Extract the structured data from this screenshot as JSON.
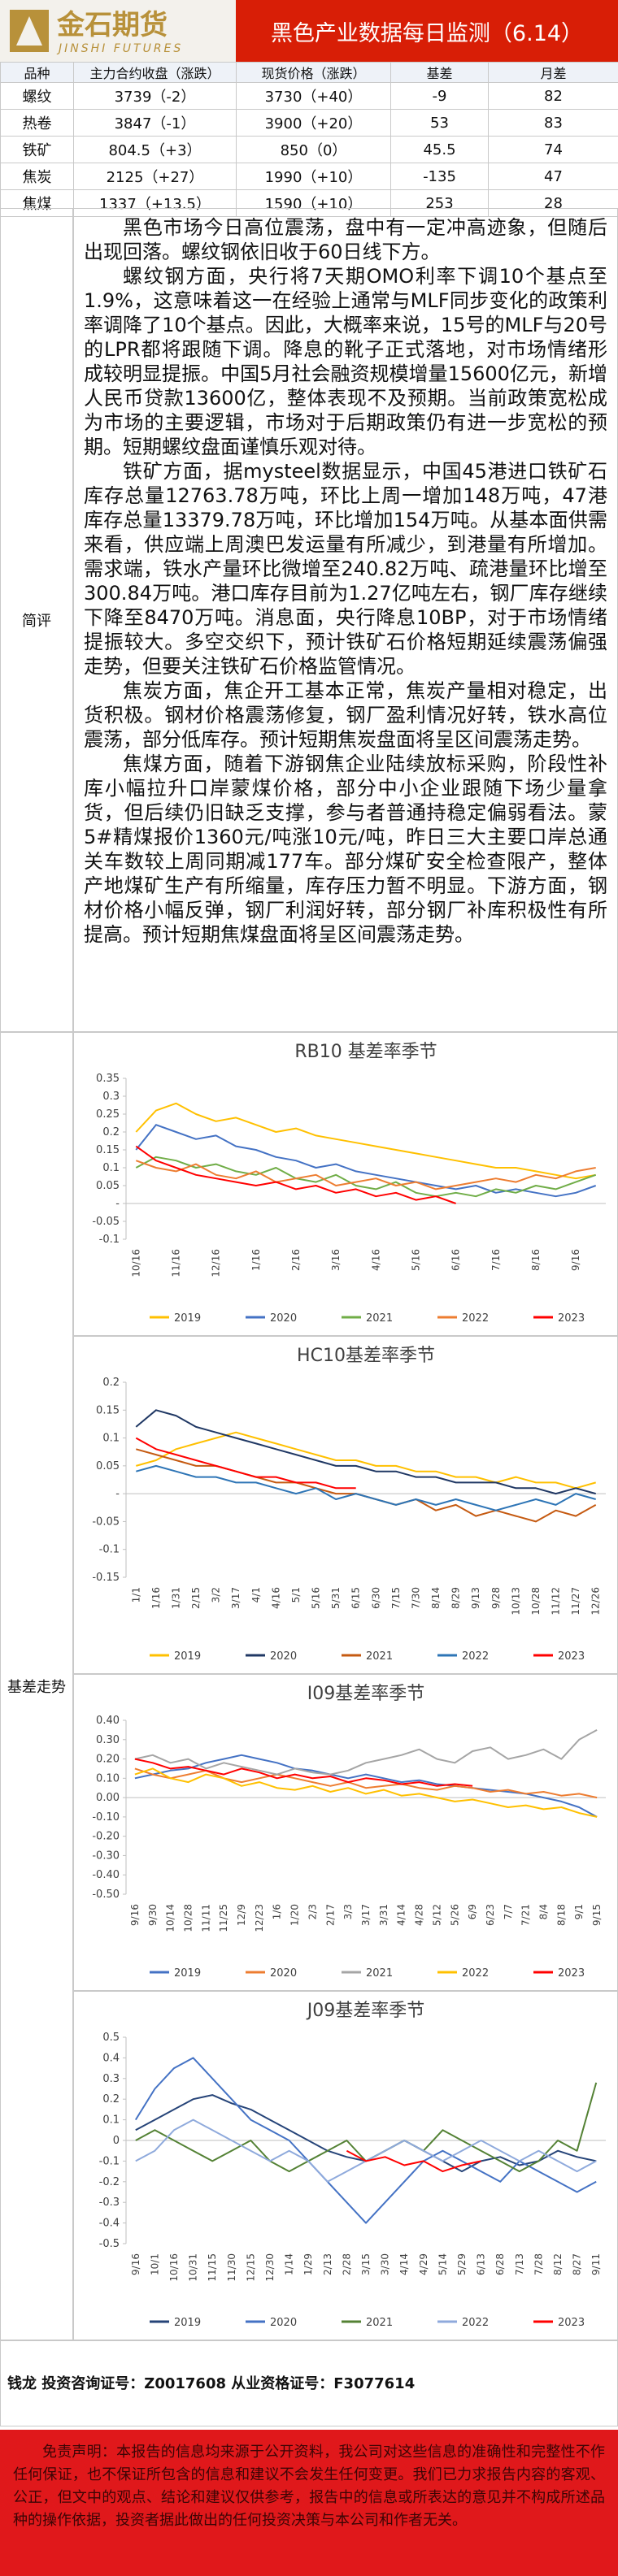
{
  "header": {
    "logo_cn": "金石期货",
    "logo_en": "JINSHI FUTURES",
    "title": "黑色产业数据每日监测（6.14）"
  },
  "table": {
    "header": [
      "品种",
      "主力合约收盘（涨跌）",
      "现货价格（涨跌）",
      "基差",
      "月差"
    ],
    "rows": [
      [
        "螺纹",
        "3739（-2）",
        "3730（+40）",
        "-9",
        "82"
      ],
      [
        "热卷",
        "3847（-1）",
        "3900（+20）",
        "53",
        "83"
      ],
      [
        "铁矿",
        "804.5（+3）",
        "850（0）",
        "45.5",
        "74"
      ],
      [
        "焦炭",
        "2125（+27）",
        "1990（+10）",
        "-135",
        "47"
      ],
      [
        "焦煤",
        "1337（+13.5）",
        "1590（+10）",
        "253",
        "28"
      ]
    ]
  },
  "sections": {
    "comment": "简评",
    "basis": "基差走势"
  },
  "commentary": {
    "paragraphs": [
      "黑色市场今日高位震荡，盘中有一定冲高迹象，但随后出现回落。螺纹钢依旧收于60日线下方。",
      "螺纹钢方面，央行将7天期OMO利率下调10个基点至1.9%，这意味着这一在经验上通常与MLF同步变化的政策利率调降了10个基点。因此，大概率来说，15号的MLF与20号的LPR都将跟随下调。降息的靴子正式落地，对市场情绪形成较明显提振。中国5月社会融资规模增量15600亿元，新增人民币贷款13600亿，整体表现不及预期。当前政策宽松成为市场的主要逻辑，市场对于后期政策仍有进一步宽松的预期。短期螺纹盘面谨慎乐观对待。",
      "铁矿方面，据mysteel数据显示，中国45港进口铁矿石库存总量12763.78万吨，环比上周一增加148万吨，47港库存总量13379.78万吨，环比增加154万吨。从基本面供需来看，供应端上周澳巴发运量有所减少，到港量有所增加。需求端，铁水产量环比微增至240.82万吨、疏港量环比增至300.84万吨。港口库存目前为1.27亿吨左右，钢厂库存继续下降至8470万吨。消息面，央行降息10BP，对于市场情绪提振较大。多空交织下，预计铁矿石价格短期延续震荡偏强走势，但要关注铁矿石价格监管情况。",
      "焦炭方面，焦企开工基本正常，焦炭产量相对稳定，出货积极。钢材价格震荡修复，钢厂盈利情况好转，铁水高位震荡，部分低库存。预计短期焦炭盘面将呈区间震荡走势。",
      "焦煤方面，随着下游钢焦企业陆续放标采购，阶段性补库小幅拉升口岸蒙煤价格，部分中小企业跟随下场少量拿货，但后续仍旧缺乏支撑，参与者普通持稳定偏弱看法。蒙5#精煤报价1360元/吨涨10元/吨，昨日三大主要口岸总通关车数较上周同期减177车。部分煤矿安全检查限产，整体产地煤矿生产有所缩量，库存压力暂不明显。下游方面，钢材价格小幅反弹，钢厂利润好转，部分钢厂补库积极性有所提高。预计短期焦煤盘面将呈区间震荡走势。"
    ]
  },
  "chart_data": [
    {
      "type": "line",
      "title": "RB10 基差率季节",
      "categories": [
        "10/16",
        null,
        "11/16",
        null,
        "12/16",
        null,
        "1/16",
        null,
        "2/16",
        null,
        "3/16",
        null,
        "4/16",
        null,
        "5/16",
        null,
        "6/16",
        null,
        "7/16",
        null,
        "8/16",
        null,
        "9/16",
        null
      ],
      "ylim": [
        -0.1,
        0.35
      ],
      "yticks": [
        0.35,
        0.3,
        0.25,
        0.2,
        0.15,
        0.1,
        0.05,
        {
          "value": 0,
          "label": "-"
        },
        -0.05,
        -0.1
      ],
      "grid": false,
      "series": [
        {
          "name": "2019",
          "color": "#ffc000",
          "values": [
            0.2,
            0.26,
            0.28,
            0.25,
            0.23,
            0.24,
            0.22,
            0.2,
            0.21,
            0.19,
            0.18,
            0.17,
            0.16,
            0.15,
            0.14,
            0.13,
            0.12,
            0.11,
            0.1,
            0.1,
            0.09,
            0.08,
            0.07,
            0.08
          ]
        },
        {
          "name": "2020",
          "color": "#4472c4",
          "values": [
            0.15,
            0.22,
            0.2,
            0.18,
            0.19,
            0.16,
            0.15,
            0.13,
            0.12,
            0.1,
            0.11,
            0.09,
            0.08,
            0.07,
            0.06,
            0.05,
            0.04,
            0.05,
            0.03,
            0.04,
            0.03,
            0.02,
            0.03,
            0.05
          ]
        },
        {
          "name": "2021",
          "color": "#70ad47",
          "values": [
            0.1,
            0.13,
            0.12,
            0.1,
            0.11,
            0.09,
            0.08,
            0.1,
            0.07,
            0.06,
            0.08,
            0.05,
            0.04,
            0.06,
            0.03,
            0.02,
            0.03,
            0.02,
            0.04,
            0.03,
            0.05,
            0.04,
            0.06,
            0.08
          ]
        },
        {
          "name": "2022",
          "color": "#ed7d31",
          "values": [
            0.12,
            0.1,
            0.09,
            0.11,
            0.08,
            0.07,
            0.09,
            0.06,
            0.07,
            0.08,
            0.05,
            0.06,
            0.07,
            0.05,
            0.06,
            0.04,
            0.05,
            0.06,
            0.07,
            0.06,
            0.08,
            0.07,
            0.09,
            0.1
          ]
        },
        {
          "name": "2023",
          "color": "#ff0000",
          "values": [
            0.16,
            0.12,
            0.1,
            0.08,
            0.07,
            0.06,
            0.05,
            0.06,
            0.04,
            0.05,
            0.03,
            0.04,
            0.02,
            0.03,
            0.01,
            0.02,
            0,
            null,
            null,
            null,
            null,
            null,
            null,
            null
          ]
        }
      ]
    },
    {
      "type": "line",
      "title": "HC10基差率季节",
      "categories": [
        "1/1",
        "1/16",
        "1/31",
        "2/15",
        "3/2",
        "3/17",
        "4/1",
        "4/16",
        "5/1",
        "5/16",
        "5/31",
        "6/15",
        "6/30",
        "7/15",
        "7/30",
        "8/14",
        "8/29",
        "9/13",
        "9/28",
        "10/13",
        "10/28",
        "11/12",
        "11/27",
        "12/26"
      ],
      "ylim": [
        -0.15,
        0.2
      ],
      "yticks": [
        0.2,
        0.15,
        0.1,
        0.05,
        {
          "value": 0,
          "label": "-"
        },
        -0.05,
        -0.1,
        -0.15
      ],
      "grid": false,
      "series": [
        {
          "name": "2019",
          "color": "#ffc000",
          "values": [
            0.05,
            0.06,
            0.08,
            0.09,
            0.1,
            0.11,
            0.1,
            0.09,
            0.08,
            0.07,
            0.06,
            0.06,
            0.05,
            0.05,
            0.04,
            0.04,
            0.03,
            0.03,
            0.02,
            0.03,
            0.02,
            0.02,
            0.01,
            0.02
          ]
        },
        {
          "name": "2020",
          "color": "#203864",
          "values": [
            0.12,
            0.15,
            0.14,
            0.12,
            0.11,
            0.1,
            0.09,
            0.08,
            0.07,
            0.06,
            0.05,
            0.05,
            0.04,
            0.04,
            0.03,
            0.03,
            0.02,
            0.02,
            0.02,
            0.01,
            0.01,
            0,
            0.01,
            0
          ]
        },
        {
          "name": "2021",
          "color": "#c55a11",
          "values": [
            0.08,
            0.07,
            0.06,
            0.05,
            0.05,
            0.04,
            0.03,
            0.02,
            0.02,
            0.01,
            0,
            0,
            -0.01,
            -0.02,
            -0.01,
            -0.03,
            -0.02,
            -0.04,
            -0.03,
            -0.04,
            -0.05,
            -0.03,
            -0.04,
            -0.02
          ]
        },
        {
          "name": "2022",
          "color": "#2e75b6",
          "values": [
            0.04,
            0.05,
            0.04,
            0.03,
            0.03,
            0.02,
            0.02,
            0.01,
            0,
            0.01,
            -0.01,
            0,
            -0.01,
            -0.02,
            -0.01,
            -0.02,
            -0.01,
            -0.02,
            -0.03,
            -0.02,
            -0.01,
            -0.02,
            0,
            -0.01
          ]
        },
        {
          "name": "2023",
          "color": "#ff0000",
          "values": [
            0.1,
            0.08,
            0.07,
            0.06,
            0.05,
            0.04,
            0.03,
            0.03,
            0.02,
            0.02,
            0.01,
            0.01,
            null,
            null,
            null,
            null,
            null,
            null,
            null,
            null,
            null,
            null,
            null,
            null
          ]
        }
      ]
    },
    {
      "type": "line",
      "title": "I09基差率季节",
      "categories": [
        "9/16",
        "9/30",
        "10/14",
        "10/28",
        "11/11",
        "11/25",
        "12/9",
        "12/23",
        "1/6",
        "1/20",
        "2/3",
        "2/17",
        "3/3",
        "3/17",
        "3/31",
        "4/14",
        "4/28",
        "5/12",
        "5/26",
        "6/9",
        "6/23",
        "7/7",
        "7/21",
        "8/4",
        "8/18",
        "9/1",
        "9/15"
      ],
      "ylim": [
        -0.5,
        0.4
      ],
      "yticks": [
        {
          "value": 0.4,
          "label": "0.40"
        },
        {
          "value": 0.3,
          "label": "0.30"
        },
        {
          "value": 0.2,
          "label": "0.20"
        },
        {
          "value": 0.1,
          "label": "0.10"
        },
        {
          "value": 0,
          "label": "0.00"
        },
        {
          "value": -0.1,
          "label": "-0.10"
        },
        {
          "value": -0.2,
          "label": "-0.20"
        },
        {
          "value": -0.3,
          "label": "-0.30"
        },
        {
          "value": -0.4,
          "label": "-0.40"
        },
        {
          "value": -0.5,
          "label": "-0.50"
        }
      ],
      "grid": false,
      "series": [
        {
          "name": "2019",
          "color": "#4472c4",
          "values": [
            0.1,
            0.12,
            0.14,
            0.15,
            0.18,
            0.2,
            0.22,
            0.2,
            0.18,
            0.15,
            0.14,
            0.12,
            0.1,
            0.12,
            0.1,
            0.08,
            0.09,
            0.07,
            0.06,
            0.05,
            0.04,
            0.03,
            0.02,
            0,
            -0.02,
            -0.05,
            -0.1
          ]
        },
        {
          "name": "2020",
          "color": "#ed7d31",
          "values": [
            0.15,
            0.12,
            0.1,
            0.12,
            0.14,
            0.1,
            0.08,
            0.1,
            0.12,
            0.1,
            0.08,
            0.06,
            0.08,
            0.05,
            0.06,
            0.07,
            0.05,
            0.04,
            0.06,
            0.05,
            0.03,
            0.04,
            0.02,
            0.03,
            0.01,
            0.02,
            0
          ]
        },
        {
          "name": "2021",
          "color": "#a5a5a5",
          "values": [
            0.2,
            0.22,
            0.18,
            0.2,
            0.15,
            0.18,
            0.16,
            0.14,
            0.12,
            0.15,
            0.13,
            0.12,
            0.14,
            0.18,
            0.2,
            0.22,
            0.25,
            0.2,
            0.18,
            0.24,
            0.26,
            0.2,
            0.22,
            0.25,
            0.2,
            0.3,
            0.35
          ]
        },
        {
          "name": "2022",
          "color": "#ffc000",
          "values": [
            0.12,
            0.15,
            0.1,
            0.08,
            0.12,
            0.1,
            0.06,
            0.08,
            0.05,
            0.04,
            0.06,
            0.03,
            0.05,
            0.02,
            0.04,
            0.01,
            0.02,
            0,
            -0.02,
            -0.01,
            -0.03,
            -0.05,
            -0.04,
            -0.06,
            -0.05,
            -0.08,
            -0.1
          ]
        },
        {
          "name": "2023",
          "color": "#ff0000",
          "values": [
            0.2,
            0.18,
            0.15,
            0.16,
            0.14,
            0.12,
            0.15,
            0.13,
            0.1,
            0.12,
            0.1,
            0.11,
            0.08,
            0.1,
            0.09,
            0.07,
            0.08,
            0.06,
            0.07,
            0.06,
            null,
            null,
            null,
            null,
            null,
            null,
            null
          ]
        }
      ]
    },
    {
      "type": "line",
      "title": "J09基差率季节",
      "categories": [
        "9/16",
        "10/1",
        "10/16",
        "10/31",
        "11/15",
        "11/30",
        "12/15",
        "12/30",
        "1/14",
        "1/29",
        "2/13",
        "2/28",
        "3/15",
        "3/30",
        "4/14",
        "4/29",
        "5/14",
        "5/29",
        "6/13",
        "6/28",
        "7/13",
        "7/28",
        "8/12",
        "8/27",
        "9/11"
      ],
      "ylim": [
        -0.5,
        0.5
      ],
      "yticks": [
        0.5,
        0.4,
        0.3,
        0.2,
        0.1,
        0,
        -0.1,
        -0.2,
        -0.3,
        -0.4,
        -0.5
      ],
      "grid": false,
      "series": [
        {
          "name": "2019",
          "color": "#264478",
          "values": [
            0.05,
            0.1,
            0.15,
            0.2,
            0.22,
            0.18,
            0.15,
            0.1,
            0.05,
            0,
            -0.05,
            -0.08,
            -0.1,
            -0.05,
            0,
            -0.05,
            -0.1,
            -0.15,
            -0.1,
            -0.08,
            -0.12,
            -0.1,
            -0.05,
            -0.08,
            -0.1
          ]
        },
        {
          "name": "2020",
          "color": "#4472c4",
          "values": [
            0.1,
            0.25,
            0.35,
            0.4,
            0.3,
            0.2,
            0.1,
            0.05,
            0,
            -0.1,
            -0.2,
            -0.3,
            -0.4,
            -0.3,
            -0.2,
            -0.1,
            -0.05,
            -0.1,
            -0.15,
            -0.2,
            -0.1,
            -0.15,
            -0.2,
            -0.25,
            -0.2
          ]
        },
        {
          "name": "2021",
          "color": "#548235",
          "values": [
            0,
            0.05,
            0,
            -0.05,
            -0.1,
            -0.05,
            0,
            -0.1,
            -0.15,
            -0.1,
            -0.05,
            0,
            -0.1,
            -0.05,
            0,
            -0.05,
            0.05,
            0,
            -0.05,
            -0.1,
            -0.15,
            -0.1,
            0,
            -0.05,
            0.28
          ]
        },
        {
          "name": "2022",
          "color": "#8faadc",
          "values": [
            -0.1,
            -0.05,
            0.05,
            0.1,
            0.05,
            0,
            -0.05,
            -0.1,
            -0.05,
            -0.1,
            -0.2,
            -0.15,
            -0.1,
            -0.05,
            0,
            -0.05,
            -0.1,
            -0.05,
            0,
            -0.05,
            -0.1,
            -0.05,
            -0.1,
            -0.15,
            -0.1
          ]
        },
        {
          "name": "2023",
          "color": "#ff0000",
          "values": [
            null,
            null,
            null,
            null,
            null,
            null,
            null,
            null,
            null,
            null,
            null,
            -0.05,
            -0.1,
            -0.08,
            -0.12,
            -0.1,
            -0.15,
            -0.12,
            -0.1,
            null,
            null,
            null,
            null,
            null,
            null
          ]
        }
      ]
    }
  ],
  "footer": {
    "author": "钱龙 投资咨询证号：Z0017608 从业资格证号：F3077614",
    "disclaimer": "免责声明：本报告的信息均来源于公开资料，我公司对这些信息的准确性和完整性不作任何保证，也不保证所包含的信息和建议不会发生任何变更。我们已力求报告内容的客观、公正，但文中的观点、结论和建议仅供参考，报告中的信息或所表达的意见并不构成所述品种的操作依据，投资者据此做出的任何投资决策与本公司和作者无关。"
  }
}
